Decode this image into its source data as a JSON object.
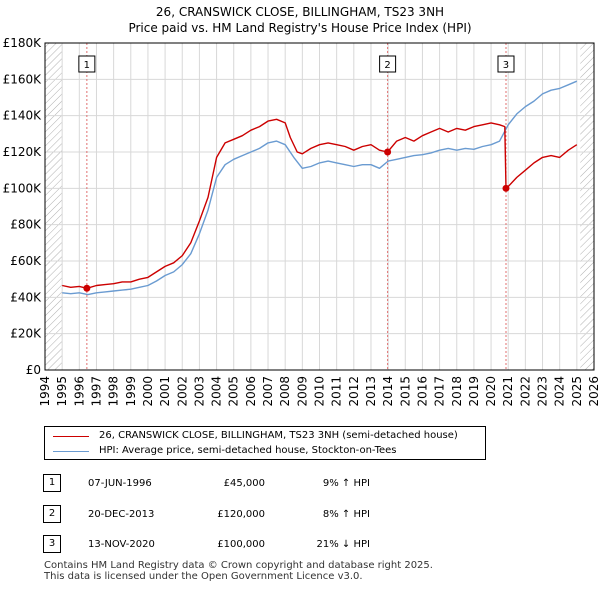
{
  "chart_data": {
    "type": "line",
    "title": "26, CRANSWICK CLOSE, BILLINGHAM, TS23 3NH",
    "subtitle": "Price paid vs. HM Land Registry's House Price Index (HPI)",
    "xlim": [
      1994,
      2026
    ],
    "ylim": [
      0,
      180000
    ],
    "x_ticks": [
      "1994",
      "1995",
      "1996",
      "1997",
      "1998",
      "1999",
      "2000",
      "2001",
      "2002",
      "2003",
      "2004",
      "2005",
      "2006",
      "2007",
      "2008",
      "2009",
      "2010",
      "2011",
      "2012",
      "2013",
      "2014",
      "2015",
      "2016",
      "2017",
      "2018",
      "2019",
      "2020",
      "2021",
      "2022",
      "2023",
      "2024",
      "2025",
      "2026"
    ],
    "y_ticks": [
      {
        "value": 0,
        "label": "£0"
      },
      {
        "value": 20000,
        "label": "£20K"
      },
      {
        "value": 40000,
        "label": "£40K"
      },
      {
        "value": 60000,
        "label": "£60K"
      },
      {
        "value": 80000,
        "label": "£80K"
      },
      {
        "value": 100000,
        "label": "£100K"
      },
      {
        "value": 120000,
        "label": "£120K"
      },
      {
        "value": 140000,
        "label": "£140K"
      },
      {
        "value": 160000,
        "label": "£160K"
      },
      {
        "value": 180000,
        "label": "£180K"
      }
    ],
    "data_range": [
      1995,
      2025.2
    ],
    "series": [
      {
        "name": "26, CRANSWICK CLOSE, BILLINGHAM, TS23 3NH (semi-detached house)",
        "color": "#cc0000",
        "x": [
          1995.0,
          1995.5,
          1996.0,
          1996.44,
          1997.0,
          1997.5,
          1998.0,
          1998.5,
          1999.0,
          1999.5,
          2000.0,
          2000.5,
          2001.0,
          2001.5,
          2002.0,
          2002.5,
          2003.0,
          2003.5,
          2004.0,
          2004.5,
          2005.0,
          2005.5,
          2006.0,
          2006.5,
          2007.0,
          2007.5,
          2008.0,
          2008.3,
          2008.7,
          2009.0,
          2009.5,
          2010.0,
          2010.5,
          2011.0,
          2011.5,
          2012.0,
          2012.5,
          2013.0,
          2013.5,
          2013.97,
          2014.5,
          2015.0,
          2015.5,
          2016.0,
          2016.5,
          2017.0,
          2017.5,
          2018.0,
          2018.5,
          2019.0,
          2019.5,
          2020.0,
          2020.5,
          2020.8,
          2020.87,
          2021.0,
          2021.5,
          2022.0,
          2022.5,
          2023.0,
          2023.5,
          2024.0,
          2024.5,
          2025.0
        ],
        "values": [
          46500,
          45500,
          46000,
          45000,
          46500,
          47000,
          47500,
          48500,
          48500,
          50000,
          51000,
          54000,
          57000,
          59000,
          63000,
          70000,
          82000,
          95000,
          117000,
          125000,
          127000,
          129000,
          132000,
          134000,
          137000,
          138000,
          136000,
          128000,
          120000,
          119000,
          122000,
          124000,
          125000,
          124000,
          123000,
          121000,
          123000,
          124000,
          121000,
          120000,
          126000,
          128000,
          126000,
          129000,
          131000,
          133000,
          131000,
          133000,
          132000,
          134000,
          135000,
          136000,
          135000,
          134000,
          100000,
          101000,
          106000,
          110000,
          114000,
          117000,
          118000,
          117000,
          121000,
          124000
        ]
      },
      {
        "name": "HPI: Average price, semi-detached house, Stockton-on-Tees",
        "color": "#6a9bd1",
        "x": [
          1995.0,
          1995.5,
          1996.0,
          1996.5,
          1997.0,
          1997.5,
          1998.0,
          1998.5,
          1999.0,
          1999.5,
          2000.0,
          2000.5,
          2001.0,
          2001.5,
          2002.0,
          2002.5,
          2003.0,
          2003.5,
          2004.0,
          2004.5,
          2005.0,
          2005.5,
          2006.0,
          2006.5,
          2007.0,
          2007.5,
          2008.0,
          2008.5,
          2009.0,
          2009.5,
          2010.0,
          2010.5,
          2011.0,
          2011.5,
          2012.0,
          2012.5,
          2013.0,
          2013.5,
          2014.0,
          2014.5,
          2015.0,
          2015.5,
          2016.0,
          2016.5,
          2017.0,
          2017.5,
          2018.0,
          2018.5,
          2019.0,
          2019.5,
          2020.0,
          2020.5,
          2021.0,
          2021.5,
          2022.0,
          2022.5,
          2023.0,
          2023.5,
          2024.0,
          2024.5,
          2025.0
        ],
        "values": [
          42500,
          42000,
          42500,
          41500,
          42500,
          43000,
          43500,
          44000,
          44500,
          45500,
          46500,
          49000,
          52000,
          54000,
          58000,
          64000,
          75000,
          88000,
          106000,
          113000,
          116000,
          118000,
          120000,
          122000,
          125000,
          126000,
          124000,
          117000,
          111000,
          112000,
          114000,
          115000,
          114000,
          113000,
          112000,
          113000,
          113000,
          111000,
          115000,
          116000,
          117000,
          118000,
          118500,
          119500,
          121000,
          122000,
          121000,
          122000,
          121500,
          123000,
          124000,
          126000,
          135000,
          141000,
          145000,
          148000,
          152000,
          154000,
          155000,
          157000,
          159000
        ]
      }
    ],
    "sales": [
      {
        "num": "1",
        "x": 1996.44,
        "value": 45000
      },
      {
        "num": "2",
        "x": 2013.97,
        "value": 120000
      },
      {
        "num": "3",
        "x": 2020.87,
        "value": 100000
      }
    ]
  },
  "legend": {
    "property_label": "26, CRANSWICK CLOSE, BILLINGHAM, TS23 3NH (semi-detached house)",
    "hpi_label": "HPI: Average price, semi-detached house, Stockton-on-Tees"
  },
  "sales_table": [
    {
      "num": "1",
      "date": "07-JUN-1996",
      "price": "£45,000",
      "hpi": "9% ↑ HPI"
    },
    {
      "num": "2",
      "date": "20-DEC-2013",
      "price": "£120,000",
      "hpi": "8% ↑ HPI"
    },
    {
      "num": "3",
      "date": "13-NOV-2020",
      "price": "£100,000",
      "hpi": "21% ↓ HPI"
    }
  ],
  "footer": {
    "line1": "Contains HM Land Registry data © Crown copyright and database right 2025.",
    "line2": "This data is licensed under the Open Government Licence v3.0."
  },
  "colors": {
    "property": "#cc0000",
    "hpi": "#6a9bd1",
    "hatch": "#b0b0b0",
    "grid": "#d8d8d8",
    "background": "#ffffff"
  }
}
